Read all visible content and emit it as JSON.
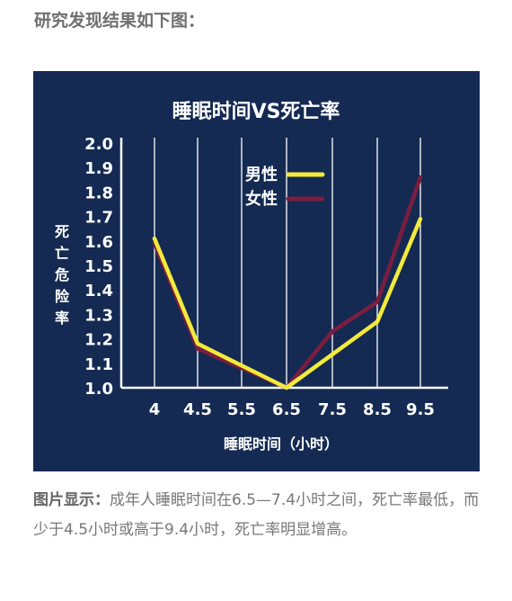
{
  "heading": "研究发现结果如下图：",
  "chart_data": {
    "type": "line",
    "title": "睡眠时间VS死亡率",
    "xlabel": "睡眠时间（小时）",
    "ylabel": "死亡危险率",
    "categories": [
      "4",
      "4.5",
      "5.5",
      "6.5",
      "7.5",
      "8.5",
      "9.5"
    ],
    "ylim": [
      1.0,
      2.0
    ],
    "yticks": [
      "2.0",
      "1.9",
      "1.8",
      "1.7",
      "1.6",
      "1.5",
      "1.4",
      "1.3",
      "1.2",
      "1.1",
      "1.0"
    ],
    "grid": "vertical",
    "legend_position": "top-left-inside",
    "series": [
      {
        "name": "男性",
        "color": "#f3ea3c",
        "x": [
          4,
          4.5,
          6.5,
          8.5,
          9.5
        ],
        "values": [
          1.61,
          1.18,
          1.0,
          1.27,
          1.69
        ]
      },
      {
        "name": "女性",
        "color": "#7c1d3f",
        "x": [
          4,
          4.5,
          6.5,
          7.5,
          8.5,
          9.5
        ],
        "values": [
          1.59,
          1.16,
          1.0,
          1.23,
          1.35,
          1.86
        ]
      }
    ]
  },
  "caption": {
    "lead": "图片显示：",
    "text": "成年人睡眠时间在6.5—7.4小时之间，死亡率最低，而少于4.5小时或高于9.4小时，死亡率明显增高。"
  }
}
